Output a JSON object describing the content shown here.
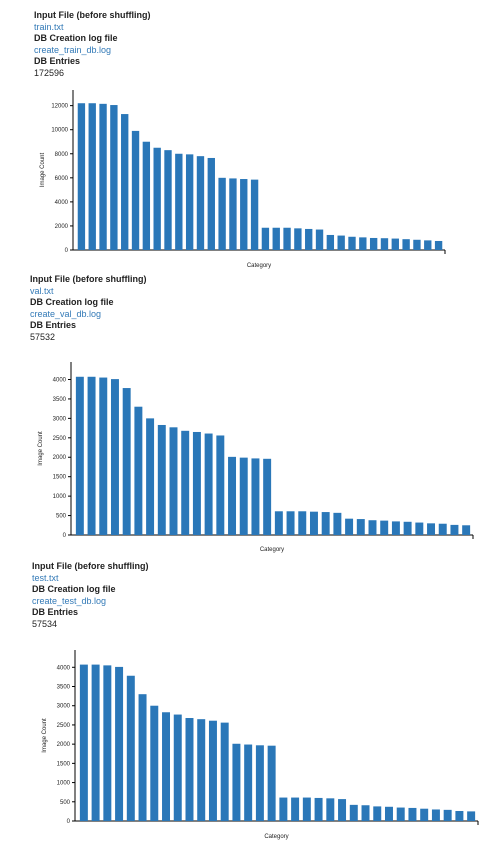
{
  "sections": [
    {
      "input_file_label": "Input File (before shuffling)",
      "input_file": "train.txt",
      "log_label": "DB Creation log file",
      "log_file": "create_train_db.log",
      "entries_label": "DB Entries",
      "entries": "172596"
    },
    {
      "input_file_label": "Input File (before shuffling)",
      "input_file": "val.txt",
      "log_label": "DB Creation log file",
      "log_file": "create_val_db.log",
      "entries_label": "DB Entries",
      "entries": "57532"
    },
    {
      "input_file_label": "Input File (before shuffling)",
      "input_file": "test.txt",
      "log_label": "DB Creation log file",
      "log_file": "create_test_db.log",
      "entries_label": "DB Entries",
      "entries": "57534"
    }
  ],
  "bar_color": "#2a77b8",
  "chart_data": [
    {
      "type": "bar",
      "xlabel": "Category",
      "ylabel": "Image Count",
      "ylim": [
        0,
        13300
      ],
      "yticks": [
        0,
        2000,
        4000,
        6000,
        8000,
        10000,
        12000
      ],
      "values": [
        12200,
        12200,
        12150,
        12050,
        11300,
        9900,
        9000,
        8500,
        8300,
        8000,
        7950,
        7800,
        7650,
        6000,
        5950,
        5900,
        5850,
        1850,
        1850,
        1850,
        1800,
        1750,
        1700,
        1250,
        1200,
        1100,
        1050,
        1000,
        980,
        950,
        900,
        850,
        800,
        750
      ]
    },
    {
      "type": "bar",
      "xlabel": "Category",
      "ylabel": "Image Count",
      "ylim": [
        0,
        4450
      ],
      "yticks": [
        0,
        500,
        1000,
        1500,
        2000,
        2500,
        3000,
        3500,
        4000
      ],
      "values": [
        4070,
        4070,
        4050,
        4010,
        3780,
        3300,
        3000,
        2830,
        2770,
        2680,
        2650,
        2610,
        2560,
        2010,
        1990,
        1970,
        1960,
        610,
        610,
        610,
        600,
        590,
        570,
        420,
        410,
        380,
        370,
        350,
        340,
        320,
        300,
        290,
        260,
        250
      ]
    },
    {
      "type": "bar",
      "xlabel": "Category",
      "ylabel": "Image Count",
      "ylim": [
        0,
        4450
      ],
      "yticks": [
        0,
        500,
        1000,
        1500,
        2000,
        2500,
        3000,
        3500,
        4000
      ],
      "values": [
        4070,
        4070,
        4050,
        4010,
        3780,
        3300,
        3000,
        2830,
        2770,
        2680,
        2650,
        2610,
        2560,
        2010,
        1990,
        1970,
        1960,
        610,
        610,
        610,
        600,
        590,
        570,
        420,
        410,
        380,
        370,
        350,
        340,
        320,
        300,
        290,
        260,
        250
      ]
    }
  ]
}
